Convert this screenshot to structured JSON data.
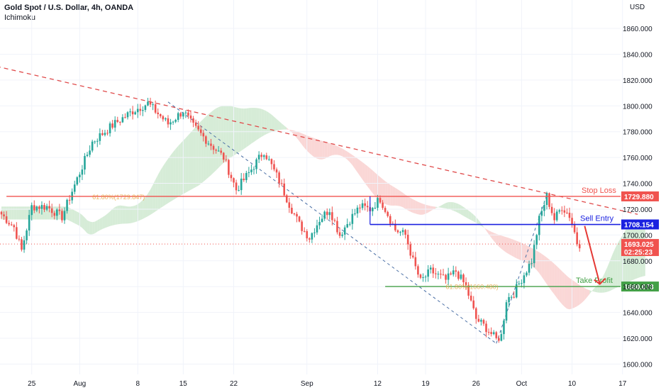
{
  "header": {
    "title": "Gold Spot / U.S. Dollar, 4h, OANDA",
    "indicator": "Ichimoku"
  },
  "colors": {
    "up": "#26a69a",
    "down": "#ef5350",
    "stop_loss": "#f0534f",
    "sell_entry": "#1a21e0",
    "take_profit": "#43a047",
    "current": "#f0534f",
    "trendline": "#e04b4b",
    "kumo_bear": "#f8c9c8",
    "kumo_bull": "#c8e6c9"
  },
  "chart_data": {
    "type": "candlestick",
    "currency_label": "USD",
    "ylim": [
      1592,
      1882
    ],
    "y_ticks": [
      1600,
      1620,
      1640,
      1660,
      1680,
      1700,
      1720,
      1740,
      1760,
      1780,
      1800,
      1820,
      1840,
      1860
    ],
    "y_tick_labels": [
      "1600.000",
      "1620.000",
      "1640.000",
      "1660.000",
      "1680.000",
      "1700.000",
      "1720.000",
      "1740.000",
      "1760.000",
      "1780.000",
      "1800.000",
      "1820.000",
      "1840.000",
      "1860.000"
    ],
    "x_ticks": [
      {
        "label": "25",
        "index": 12
      },
      {
        "label": "Aug",
        "index": 31
      },
      {
        "label": "8",
        "index": 54
      },
      {
        "label": "15",
        "index": 72
      },
      {
        "label": "22",
        "index": 92
      },
      {
        "label": "Sep",
        "index": 121
      },
      {
        "label": "12",
        "index": 149
      },
      {
        "label": "19",
        "index": 168
      },
      {
        "label": "26",
        "index": 188
      },
      {
        "label": "Oct",
        "index": 206
      },
      {
        "label": "10",
        "index": 226
      },
      {
        "label": "17",
        "index": 246
      }
    ],
    "anchors": [
      [
        0,
        1716
      ],
      [
        5,
        1706
      ],
      [
        8,
        1688
      ],
      [
        12,
        1722
      ],
      [
        18,
        1722
      ],
      [
        24,
        1714
      ],
      [
        28,
        1734
      ],
      [
        36,
        1772
      ],
      [
        44,
        1785
      ],
      [
        52,
        1796
      ],
      [
        58,
        1802
      ],
      [
        62,
        1794
      ],
      [
        66,
        1786
      ],
      [
        72,
        1796
      ],
      [
        76,
        1784
      ],
      [
        82,
        1772
      ],
      [
        88,
        1760
      ],
      [
        93,
        1735
      ],
      [
        98,
        1748
      ],
      [
        104,
        1765
      ],
      [
        110,
        1742
      ],
      [
        114,
        1724
      ],
      [
        118,
        1708
      ],
      [
        122,
        1698
      ],
      [
        126,
        1712
      ],
      [
        130,
        1720
      ],
      [
        134,
        1700
      ],
      [
        138,
        1712
      ],
      [
        142,
        1722
      ],
      [
        146,
        1720
      ],
      [
        150,
        1728
      ],
      [
        153,
        1716
      ],
      [
        156,
        1704
      ],
      [
        160,
        1700
      ],
      [
        163,
        1680
      ],
      [
        166,
        1664
      ],
      [
        170,
        1672
      ],
      [
        176,
        1665
      ],
      [
        180,
        1672
      ],
      [
        184,
        1660
      ],
      [
        188,
        1635
      ],
      [
        192,
        1628
      ],
      [
        196,
        1619
      ],
      [
        198,
        1622
      ],
      [
        200,
        1650
      ],
      [
        203,
        1655
      ],
      [
        206,
        1666
      ],
      [
        210,
        1680
      ],
      [
        213,
        1712
      ],
      [
        216,
        1730
      ],
      [
        219,
        1712
      ],
      [
        222,
        1722
      ],
      [
        225,
        1715
      ],
      [
        227,
        1702
      ],
      [
        228,
        1694
      ],
      [
        229,
        1693
      ]
    ],
    "candle_count": 230,
    "levels": [
      {
        "name": "Stop Loss",
        "value": 1729.88,
        "label": "1729.880"
      },
      {
        "name": "Sell Entry",
        "value": 1708.154,
        "label": "1708.154"
      },
      {
        "name": "Take Profit",
        "value": 1660.073,
        "label": "1660.073"
      }
    ],
    "current_price": {
      "value": 1693.025,
      "label": "1693.025",
      "countdown": "02:25:23"
    },
    "fib_labels": [
      {
        "text": "61.80%(1729.847)",
        "value": 1729.847,
        "index": 36
      },
      {
        "text": "61.80%(1660.480)",
        "value": 1660.48,
        "index": 176
      }
    ],
    "trendline": {
      "from": [
        -5,
        1832
      ],
      "to": [
        252,
        1716
      ]
    },
    "projection": {
      "from": [
        231,
        1707
      ],
      "to": [
        237,
        1662
      ]
    }
  }
}
